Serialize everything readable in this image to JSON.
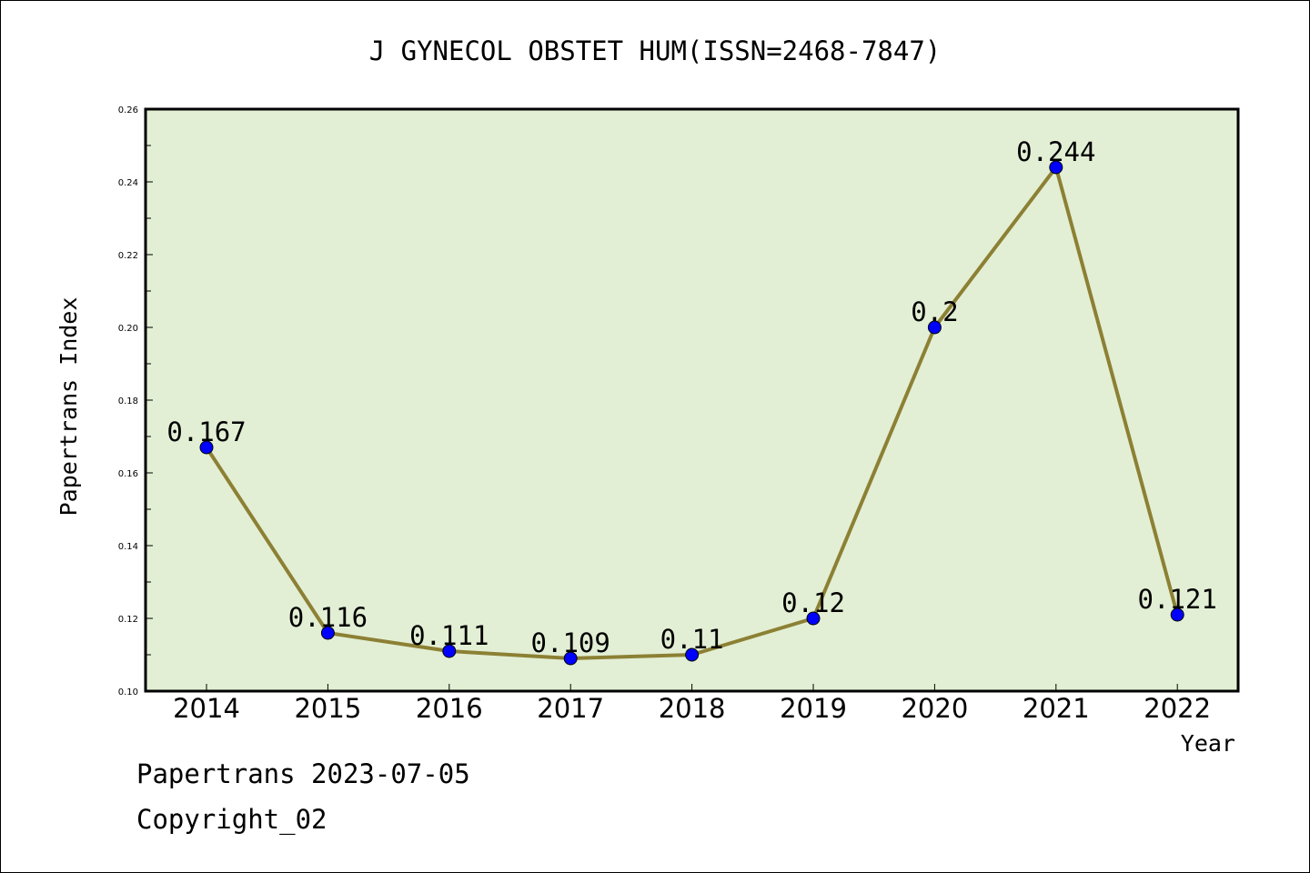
{
  "chart_data": {
    "type": "line",
    "title": "J GYNECOL OBSTET HUM(ISSN=2468-7847)",
    "xlabel": "Year",
    "ylabel": "Papertrans Index",
    "categories": [
      "2014",
      "2015",
      "2016",
      "2017",
      "2018",
      "2019",
      "2020",
      "2021",
      "2022"
    ],
    "series": [
      {
        "values": [
          0.167,
          0.116,
          0.111,
          0.109,
          0.11,
          0.12,
          0.2,
          0.244,
          0.121
        ],
        "data_labels": [
          "0.167",
          "0.116",
          "0.111",
          "0.109",
          "0.11",
          "0.12",
          "0.2",
          "0.244",
          "0.121"
        ]
      }
    ],
    "ylim": [
      0.1,
      0.26
    ],
    "yticks": [
      "0.10",
      "0.12",
      "0.14",
      "0.16",
      "0.18",
      "0.20",
      "0.22",
      "0.24",
      "0.26"
    ],
    "grid": false,
    "colors": {
      "plot_background": "#e2efd4",
      "line": "#8c8034",
      "marker": "#0000ff"
    }
  },
  "footer": {
    "date_line": "Papertrans 2023-07-05",
    "copyright": "Copyright_02"
  }
}
